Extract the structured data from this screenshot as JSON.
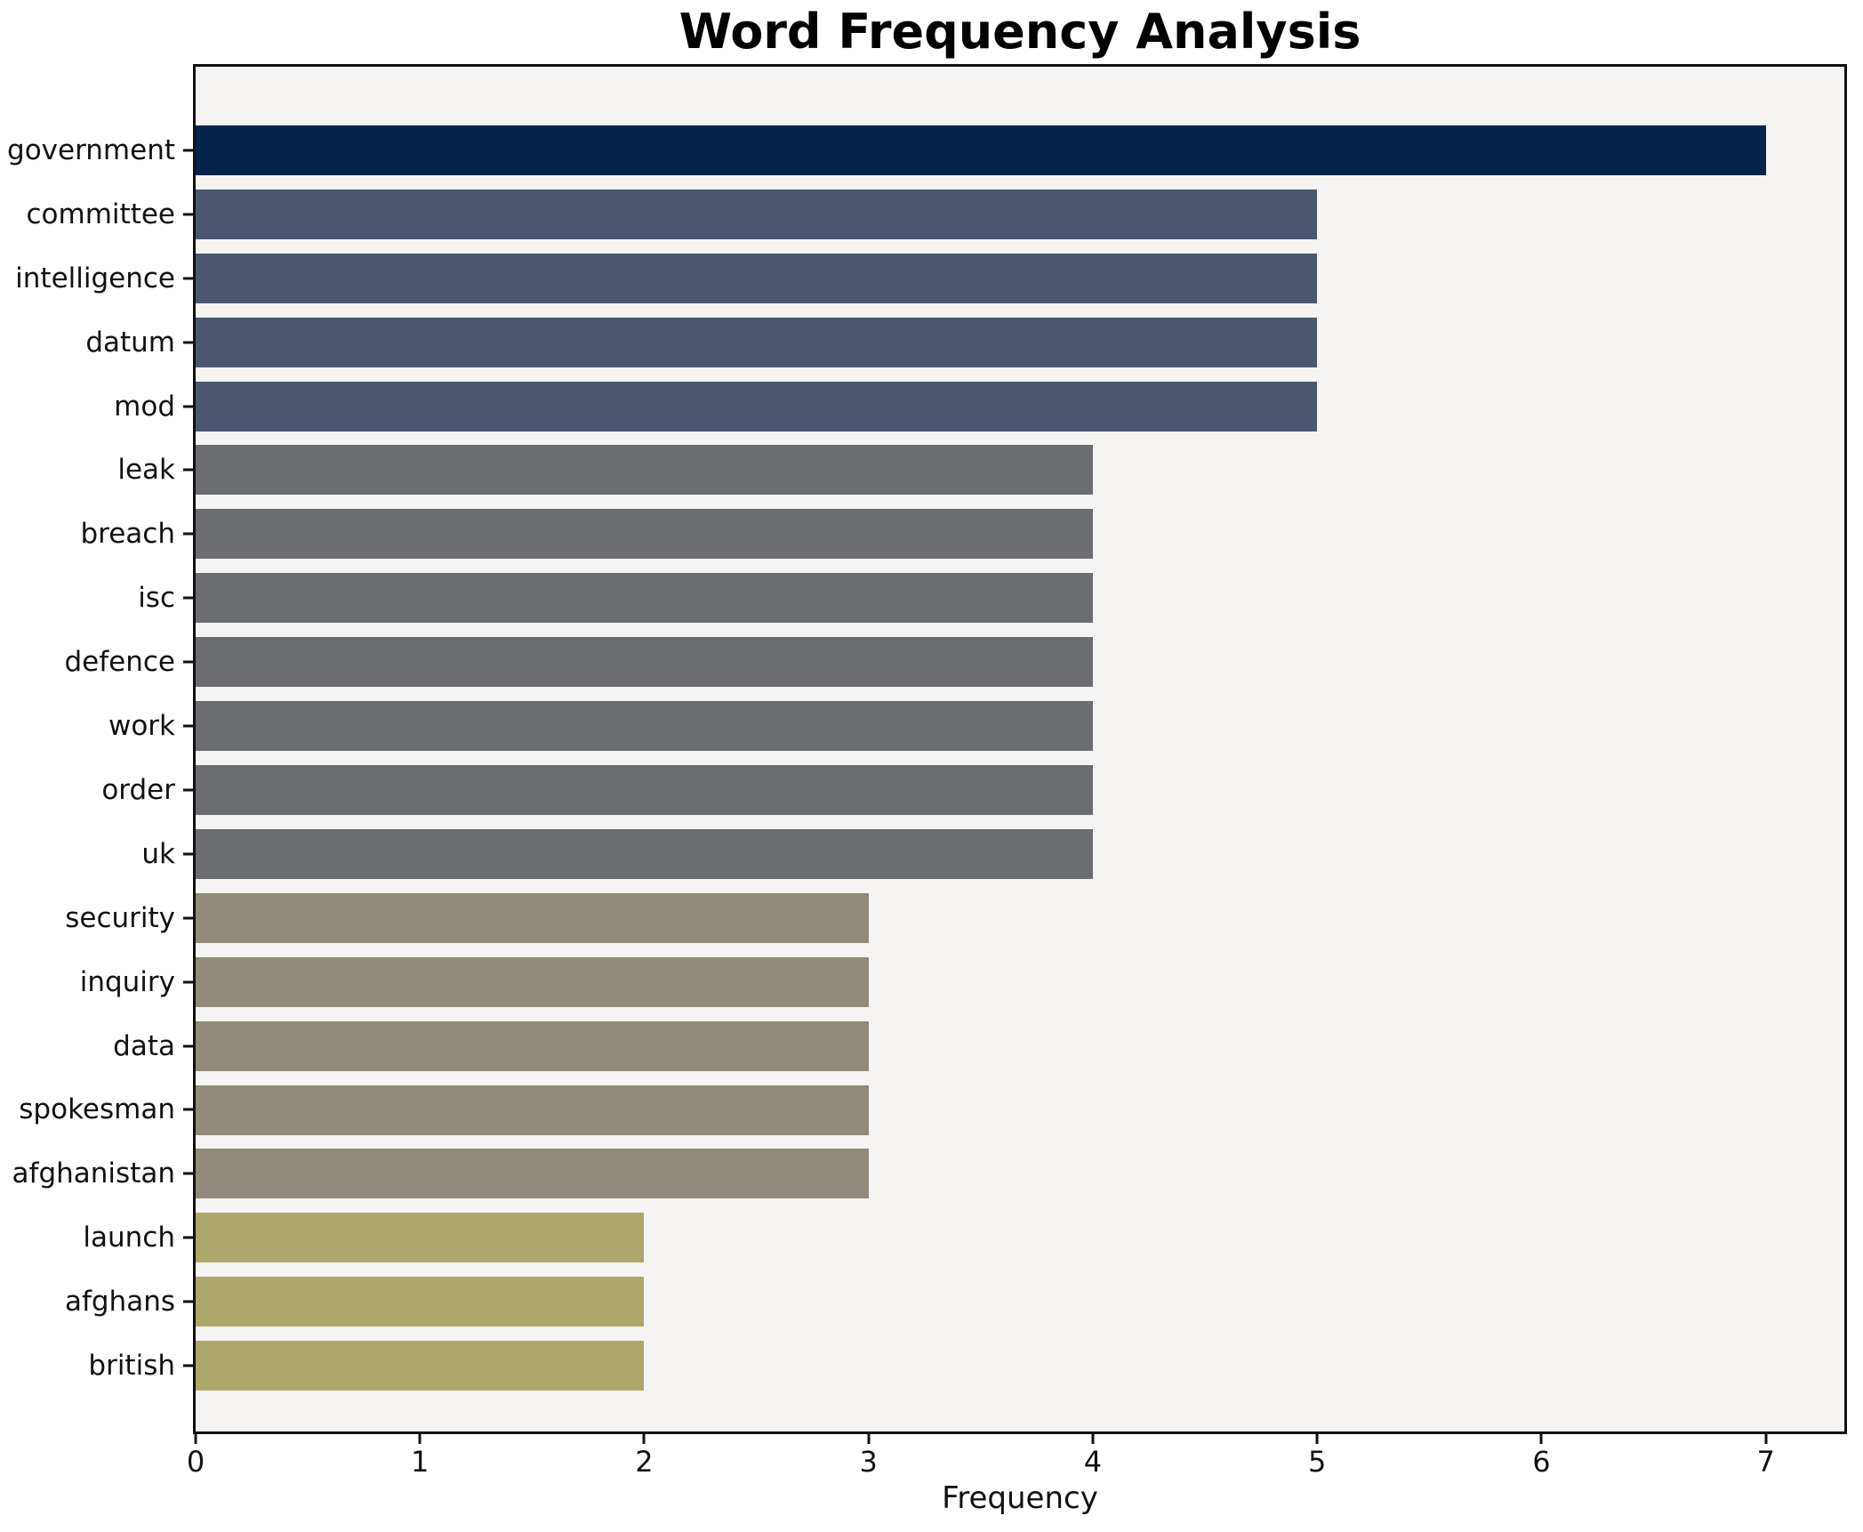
{
  "chart_data": {
    "type": "bar",
    "orientation": "horizontal",
    "title": "Word Frequency Analysis",
    "xlabel": "Frequency",
    "ylabel": "",
    "categories": [
      "government",
      "committee",
      "intelligence",
      "datum",
      "mod",
      "leak",
      "breach",
      "isc",
      "defence",
      "work",
      "order",
      "uk",
      "security",
      "inquiry",
      "data",
      "spokesman",
      "afghanistan",
      "launch",
      "afghans",
      "british"
    ],
    "values": [
      7,
      5,
      5,
      5,
      5,
      4,
      4,
      4,
      4,
      4,
      4,
      4,
      3,
      3,
      3,
      3,
      3,
      2,
      2,
      2
    ],
    "xlim": [
      0,
      7.35
    ],
    "xticks": [
      0,
      1,
      2,
      3,
      4,
      5,
      6,
      7
    ],
    "grid": false,
    "legend": null,
    "colors_by_value": {
      "7": "#04234b",
      "5": "#4c566e",
      "4": "#6c6d70",
      "3": "#8f8a7a",
      "2": "#aea76c"
    },
    "plot_background": "#f5f4f2",
    "figure_background": "#ffffff",
    "spine_color": "#111111",
    "text_color": "#111111"
  }
}
